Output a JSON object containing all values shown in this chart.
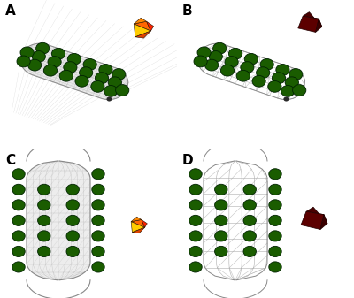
{
  "bg_color": "#ffffff",
  "label_A": "A",
  "label_B": "B",
  "label_C": "C",
  "label_D": "D",
  "label_fontsize": 11,
  "label_color": "#000000",
  "mesh_color_dense": "#aaaaaa",
  "mesh_color_sparse": "#aaaaaa",
  "electrode_color": "#1a5c00",
  "electrode_edge": "#002200",
  "dark_node_color": "#2a2a2a",
  "poly_warm_colors": [
    "#ff2200",
    "#ff8800",
    "#ffdd00",
    "#ff6600",
    "#ffbb00",
    "#dd1100",
    "#ff9900",
    "#ee3300"
  ],
  "poly_dark_color": "#5c0000",
  "fig_width": 4.0,
  "fig_height": 3.37,
  "dpi": 100
}
